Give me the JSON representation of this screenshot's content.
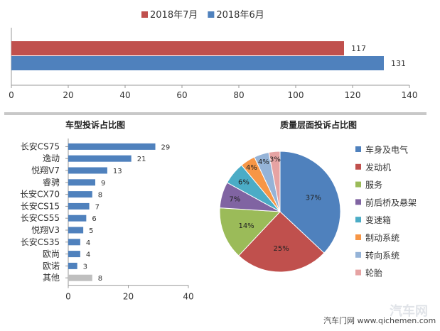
{
  "chart_data": [
    {
      "type": "bar",
      "orientation": "horizontal",
      "title": "",
      "series": [
        {
          "name": "2018年7月",
          "values": [
            117
          ],
          "color": "#c0504d"
        },
        {
          "name": "2018年6月",
          "values": [
            131
          ],
          "color": "#4f81bd"
        }
      ],
      "xlim": [
        0,
        140
      ],
      "xticks": [
        0,
        20,
        40,
        60,
        80,
        100,
        120,
        140
      ],
      "grid": false,
      "legend": "top"
    },
    {
      "type": "bar",
      "orientation": "horizontal",
      "title": "车型投诉占比图",
      "categories": [
        "长安CS75",
        "逸动",
        "悦翔V7",
        "睿骋",
        "长安CX70",
        "长安CS15",
        "长安CS55",
        "悦翔V3",
        "长安CS35",
        "欧尚",
        "欧诺",
        "其他"
      ],
      "values": [
        29,
        21,
        13,
        9,
        8,
        7,
        6,
        5,
        4,
        4,
        3,
        8
      ],
      "colors": {
        "default": "#4f81bd",
        "其他": "#bfbfbf"
      },
      "xlim": [
        0,
        40
      ],
      "xticks": [
        0,
        20,
        40
      ],
      "grid": false
    },
    {
      "type": "pie",
      "title": "质量层面投诉占比图",
      "labels": [
        "车身及电气",
        "发动机",
        "服务",
        "前后桥及悬架",
        "变速箱",
        "制动系统",
        "转向系统",
        "轮胎"
      ],
      "values": [
        37,
        25,
        14,
        7,
        6,
        4,
        4,
        3
      ],
      "colors": [
        "#4f81bd",
        "#c0504d",
        "#9bbb59",
        "#8064a2",
        "#4bacc6",
        "#f79646",
        "#95b3d7",
        "#e6a3a3"
      ],
      "legend": "right"
    }
  ],
  "watermark": {
    "brand": "汽车网",
    "site": "汽车门网 www.qichemen.com"
  }
}
